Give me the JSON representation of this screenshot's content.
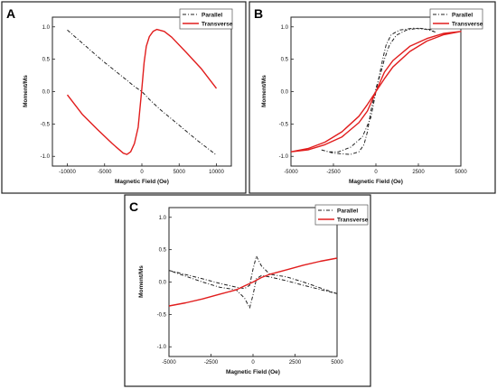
{
  "colors": {
    "parallel": "#222222",
    "transverse": "#e11d1d",
    "frame": "#222222",
    "background": "#ffffff"
  },
  "chart_data": [
    {
      "panel": "A",
      "type": "line",
      "xlabel": "Magnetic Field (Oe)",
      "ylabel": "Moment/Ms",
      "xlim": [
        -12000,
        12000
      ],
      "ylim": [
        -1.15,
        1.15
      ],
      "xticks": [
        -10000,
        -5000,
        0,
        5000,
        10000
      ],
      "xtick_labels": [
        "-10000",
        "-5000",
        "0",
        "5000",
        "10000"
      ],
      "yticks": [
        -1.0,
        -0.5,
        0.0,
        0.5,
        1.0
      ],
      "ytick_labels": [
        "-1.0",
        "-0.5",
        "0.0",
        "0.5",
        "1.0"
      ],
      "legend_position": "top-right",
      "series": [
        {
          "name": "Parallel",
          "style": "dashdot",
          "x": [
            -10000,
            -7500,
            -5000,
            -2500,
            -1000,
            0,
            1000,
            2500,
            5000,
            7500,
            10000
          ],
          "y": [
            0.95,
            0.7,
            0.45,
            0.22,
            0.08,
            0.0,
            -0.12,
            -0.28,
            -0.52,
            -0.76,
            -0.98
          ]
        },
        {
          "name": "Transverse",
          "style": "solid",
          "x": [
            -10000,
            -8000,
            -6000,
            -4000,
            -2500,
            -2000,
            -1500,
            -1000,
            -500,
            0,
            300,
            600,
            1000,
            1500,
            2000,
            3000,
            4000,
            6000,
            8000,
            10000
          ],
          "y": [
            -0.05,
            -0.35,
            -0.58,
            -0.8,
            -0.95,
            -0.97,
            -0.93,
            -0.8,
            -0.55,
            0.05,
            0.45,
            0.7,
            0.85,
            0.93,
            0.96,
            0.93,
            0.84,
            0.6,
            0.35,
            0.05
          ]
        }
      ]
    },
    {
      "panel": "B",
      "type": "line",
      "xlabel": "Magnetic Field (Oe)",
      "ylabel": "Moment/Ms",
      "xlim": [
        -5000,
        5000
      ],
      "ylim": [
        -1.15,
        1.15
      ],
      "xticks": [
        -5000,
        -2500,
        0,
        2500,
        5000
      ],
      "xtick_labels": [
        "-5000",
        "-2500",
        "0",
        "2500",
        "5000"
      ],
      "yticks": [
        -1.0,
        -0.5,
        0.0,
        0.5,
        1.0
      ],
      "ytick_labels": [
        "-1.0",
        "-0.5",
        "0.0",
        "0.5",
        "1.0"
      ],
      "legend_position": "top-right",
      "series": [
        {
          "name": "Parallel",
          "style": "dashdot",
          "x": [
            -3200,
            -2500,
            -1500,
            -1000,
            -700,
            -500,
            -300,
            0,
            300,
            500,
            800,
            1200,
            1800,
            2500,
            3200,
            3500,
            3000,
            2200,
            1400,
            900,
            600,
            400,
            200,
            0,
            -300,
            -800,
            -1500,
            -2200,
            -2800,
            -3200
          ],
          "y": [
            -0.9,
            -0.95,
            -0.97,
            -0.93,
            -0.82,
            -0.62,
            -0.3,
            0.05,
            0.3,
            0.5,
            0.72,
            0.87,
            0.95,
            0.98,
            0.96,
            0.92,
            0.96,
            0.98,
            0.95,
            0.88,
            0.72,
            0.5,
            0.25,
            0.0,
            -0.4,
            -0.7,
            -0.86,
            -0.93,
            -0.93,
            -0.9
          ]
        },
        {
          "name": "Transverse",
          "style": "solid",
          "x": [
            -5000,
            -4000,
            -3000,
            -2000,
            -1000,
            -500,
            0,
            500,
            1000,
            2000,
            3000,
            4000,
            5000,
            4000,
            3000,
            2000,
            1000,
            500,
            0,
            -500,
            -1000,
            -2000,
            -3000,
            -4000,
            -5000
          ],
          "y": [
            -0.93,
            -0.88,
            -0.78,
            -0.62,
            -0.38,
            -0.2,
            0.0,
            0.3,
            0.48,
            0.7,
            0.82,
            0.9,
            0.93,
            0.88,
            0.78,
            0.62,
            0.38,
            0.2,
            0.0,
            -0.3,
            -0.48,
            -0.7,
            -0.82,
            -0.9,
            -0.93
          ]
        }
      ]
    },
    {
      "panel": "C",
      "type": "line",
      "xlabel": "Magnetic Field (Oe)",
      "ylabel": "Moment/Ms",
      "xlim": [
        -5000,
        5000
      ],
      "ylim": [
        -1.15,
        1.15
      ],
      "xticks": [
        -5000,
        -2500,
        0,
        2500,
        5000
      ],
      "xtick_labels": [
        "-5000",
        "-2500",
        "0",
        "2500",
        "5000"
      ],
      "yticks": [
        -1.0,
        -0.5,
        0.0,
        0.5,
        1.0
      ],
      "ytick_labels": [
        "-1.0",
        "-0.5",
        "0.0",
        "0.5",
        "1.0"
      ],
      "legend_position": "top-right",
      "series": [
        {
          "name": "Parallel",
          "style": "dashdot",
          "x": [
            -5000,
            -3000,
            -2000,
            -1000,
            -500,
            -200,
            0,
            200,
            500,
            1000,
            2000,
            3000,
            5000,
            3000,
            2000,
            1000,
            500,
            200,
            0,
            -200,
            -500,
            -1000,
            -2000,
            -3000,
            -5000
          ],
          "y": [
            0.18,
            0.05,
            -0.02,
            -0.08,
            -0.1,
            -0.05,
            0.2,
            0.4,
            0.25,
            0.12,
            0.08,
            0.0,
            -0.18,
            -0.05,
            0.02,
            0.08,
            0.1,
            0.05,
            -0.2,
            -0.4,
            -0.25,
            -0.12,
            -0.08,
            0.0,
            0.18
          ]
        },
        {
          "name": "Transverse",
          "style": "solid",
          "x": [
            -5000,
            -4000,
            -3000,
            -2000,
            -1000,
            -500,
            0,
            500,
            1000,
            2000,
            3000,
            4000,
            5000
          ],
          "y": [
            -0.37,
            -0.32,
            -0.26,
            -0.19,
            -0.12,
            -0.06,
            0.0,
            0.07,
            0.12,
            0.19,
            0.26,
            0.32,
            0.37
          ]
        }
      ]
    }
  ]
}
